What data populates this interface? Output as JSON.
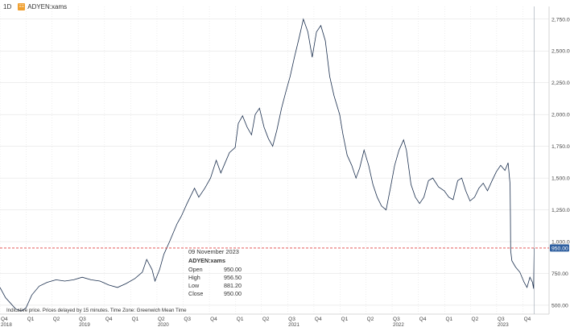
{
  "header": {
    "timeframe": "1D",
    "symbol_badge": "ΞΞ",
    "symbol": "ADYEN:xams"
  },
  "tooltip": {
    "date": "09 November 2023",
    "symbol": "ADYEN:xams",
    "rows": [
      {
        "label": "Open",
        "value": "950.00"
      },
      {
        "label": "High",
        "value": "956.50"
      },
      {
        "label": "Low",
        "value": "881.20"
      },
      {
        "label": "Close",
        "value": "950.00"
      }
    ]
  },
  "footnote": "Indicative price. Prices delayed by 15 minutes.  Time Zone: Greenwich Mean Time",
  "colors": {
    "line": "#1b2f4e",
    "crosshair": "#e04040",
    "grid": "#dddddd",
    "current_price_tag": "#2f5f9f"
  },
  "chart_data": {
    "type": "line",
    "title": "",
    "xlabel": "",
    "ylabel": "",
    "ylim": [
      430,
      2850
    ],
    "xlim": [
      "2018-10-01",
      "2023-12-31"
    ],
    "y_ticks": [
      500,
      750,
      1000,
      1250,
      1500,
      1750,
      2000,
      2250,
      2500,
      2750
    ],
    "y_tick_labels": [
      "500.00",
      "750.00",
      "1,000.00",
      "1,250.00",
      "1,500.00",
      "1,750.00",
      "2,000.00",
      "2,250.00",
      "2,500.00",
      "2,750.00"
    ],
    "crosshair_price": 950,
    "crosshair_label": "950.00",
    "x_ticks": [
      {
        "date": "2018-10-01",
        "label": "Q4",
        "year": "2018"
      },
      {
        "date": "2019-01-01",
        "label": "Q1",
        "year": ""
      },
      {
        "date": "2019-04-01",
        "label": "Q2",
        "year": ""
      },
      {
        "date": "2019-07-01",
        "label": "Q3",
        "year": "2019"
      },
      {
        "date": "2019-10-01",
        "label": "Q4",
        "year": ""
      },
      {
        "date": "2020-01-01",
        "label": "Q1",
        "year": ""
      },
      {
        "date": "2020-04-01",
        "label": "Q2",
        "year": "2020"
      },
      {
        "date": "2020-07-01",
        "label": "Q3",
        "year": ""
      },
      {
        "date": "2020-10-01",
        "label": "Q4",
        "year": ""
      },
      {
        "date": "2021-01-01",
        "label": "Q1",
        "year": ""
      },
      {
        "date": "2021-04-01",
        "label": "Q2",
        "year": ""
      },
      {
        "date": "2021-07-01",
        "label": "Q3",
        "year": "2021"
      },
      {
        "date": "2021-10-01",
        "label": "Q4",
        "year": ""
      },
      {
        "date": "2022-01-01",
        "label": "Q1",
        "year": ""
      },
      {
        "date": "2022-04-01",
        "label": "Q2",
        "year": ""
      },
      {
        "date": "2022-07-01",
        "label": "Q3",
        "year": "2022"
      },
      {
        "date": "2022-10-01",
        "label": "Q4",
        "year": ""
      },
      {
        "date": "2023-01-01",
        "label": "Q1",
        "year": ""
      },
      {
        "date": "2023-04-01",
        "label": "Q2",
        "year": ""
      },
      {
        "date": "2023-07-01",
        "label": "Q3",
        "year": "2023"
      },
      {
        "date": "2023-10-01",
        "label": "Q4",
        "year": ""
      }
    ],
    "series": [
      {
        "points": [
          [
            "2018-10-01",
            640
          ],
          [
            "2018-10-20",
            560
          ],
          [
            "2018-11-05",
            520
          ],
          [
            "2018-11-25",
            470
          ],
          [
            "2018-12-15",
            455
          ],
          [
            "2018-12-31",
            480
          ],
          [
            "2019-01-20",
            580
          ],
          [
            "2019-02-15",
            650
          ],
          [
            "2019-03-15",
            680
          ],
          [
            "2019-04-15",
            700
          ],
          [
            "2019-05-15",
            690
          ],
          [
            "2019-06-15",
            700
          ],
          [
            "2019-07-15",
            720
          ],
          [
            "2019-08-15",
            700
          ],
          [
            "2019-09-15",
            690
          ],
          [
            "2019-10-15",
            660
          ],
          [
            "2019-11-15",
            640
          ],
          [
            "2019-12-15",
            670
          ],
          [
            "2020-01-15",
            710
          ],
          [
            "2020-02-10",
            760
          ],
          [
            "2020-02-25",
            860
          ],
          [
            "2020-03-15",
            780
          ],
          [
            "2020-03-25",
            690
          ],
          [
            "2020-04-10",
            780
          ],
          [
            "2020-04-25",
            900
          ],
          [
            "2020-05-15",
            1000
          ],
          [
            "2020-06-10",
            1140
          ],
          [
            "2020-06-25",
            1200
          ],
          [
            "2020-07-15",
            1300
          ],
          [
            "2020-08-10",
            1420
          ],
          [
            "2020-08-25",
            1350
          ],
          [
            "2020-09-15",
            1420
          ],
          [
            "2020-10-05",
            1500
          ],
          [
            "2020-10-25",
            1640
          ],
          [
            "2020-11-10",
            1540
          ],
          [
            "2020-11-25",
            1620
          ],
          [
            "2020-12-10",
            1700
          ],
          [
            "2020-12-30",
            1740
          ],
          [
            "2021-01-10",
            1930
          ],
          [
            "2021-01-25",
            1990
          ],
          [
            "2021-02-10",
            1900
          ],
          [
            "2021-02-25",
            1840
          ],
          [
            "2021-03-10",
            2000
          ],
          [
            "2021-03-25",
            2050
          ],
          [
            "2021-04-10",
            1900
          ],
          [
            "2021-04-25",
            1810
          ],
          [
            "2021-05-10",
            1750
          ],
          [
            "2021-05-25",
            1880
          ],
          [
            "2021-06-10",
            2050
          ],
          [
            "2021-06-25",
            2180
          ],
          [
            "2021-07-10",
            2300
          ],
          [
            "2021-07-25",
            2450
          ],
          [
            "2021-08-10",
            2600
          ],
          [
            "2021-08-25",
            2750
          ],
          [
            "2021-09-10",
            2650
          ],
          [
            "2021-09-25",
            2450
          ],
          [
            "2021-10-10",
            2650
          ],
          [
            "2021-10-25",
            2700
          ],
          [
            "2021-11-10",
            2580
          ],
          [
            "2021-11-25",
            2300
          ],
          [
            "2021-12-10",
            2150
          ],
          [
            "2021-12-30",
            2000
          ],
          [
            "2022-01-10",
            1850
          ],
          [
            "2022-01-25",
            1680
          ],
          [
            "2022-02-10",
            1600
          ],
          [
            "2022-02-25",
            1500
          ],
          [
            "2022-03-10",
            1580
          ],
          [
            "2022-03-25",
            1720
          ],
          [
            "2022-04-10",
            1600
          ],
          [
            "2022-04-25",
            1450
          ],
          [
            "2022-05-10",
            1350
          ],
          [
            "2022-05-25",
            1280
          ],
          [
            "2022-06-10",
            1250
          ],
          [
            "2022-06-25",
            1420
          ],
          [
            "2022-07-10",
            1600
          ],
          [
            "2022-07-25",
            1720
          ],
          [
            "2022-08-10",
            1800
          ],
          [
            "2022-08-20",
            1720
          ],
          [
            "2022-09-05",
            1450
          ],
          [
            "2022-09-20",
            1350
          ],
          [
            "2022-10-05",
            1300
          ],
          [
            "2022-10-20",
            1350
          ],
          [
            "2022-11-05",
            1480
          ],
          [
            "2022-11-20",
            1500
          ],
          [
            "2022-12-10",
            1430
          ],
          [
            "2022-12-30",
            1400
          ],
          [
            "2023-01-15",
            1350
          ],
          [
            "2023-01-30",
            1330
          ],
          [
            "2023-02-15",
            1480
          ],
          [
            "2023-03-01",
            1500
          ],
          [
            "2023-03-15",
            1400
          ],
          [
            "2023-03-30",
            1320
          ],
          [
            "2023-04-15",
            1350
          ],
          [
            "2023-04-30",
            1420
          ],
          [
            "2023-05-15",
            1460
          ],
          [
            "2023-05-30",
            1400
          ],
          [
            "2023-06-15",
            1480
          ],
          [
            "2023-06-30",
            1550
          ],
          [
            "2023-07-15",
            1600
          ],
          [
            "2023-07-30",
            1560
          ],
          [
            "2023-08-10",
            1620
          ],
          [
            "2023-08-17",
            1450
          ],
          [
            "2023-08-18",
            1200
          ],
          [
            "2023-08-19",
            930
          ],
          [
            "2023-08-23",
            850
          ],
          [
            "2023-09-05",
            800
          ],
          [
            "2023-09-20",
            760
          ],
          [
            "2023-10-05",
            680
          ],
          [
            "2023-10-15",
            640
          ],
          [
            "2023-10-25",
            720
          ],
          [
            "2023-11-03",
            680
          ],
          [
            "2023-11-07",
            630
          ],
          [
            "2023-11-09",
            950
          ]
        ]
      }
    ]
  }
}
